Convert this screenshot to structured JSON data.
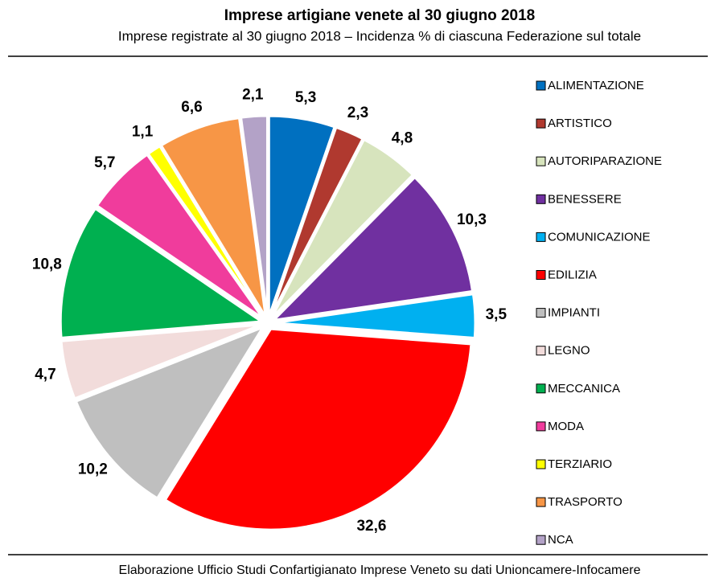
{
  "chart_data": {
    "type": "pie",
    "title": "Imprese artigiane venete al 30 giugno 2018",
    "subtitle": "Imprese registrate al 30 giugno 2018 – Incidenza % di ciascuna Federazione sul totale",
    "source": "Elaborazione Ufficio Studi Confartigianato Imprese Veneto su dati Unioncamere-Infocamere",
    "categories": [
      "ALIMENTAZIONE",
      "ARTISTICO",
      "AUTORIPARAZIONE",
      "BENESSERE",
      "COMUNICAZIONE",
      "EDILIZIA",
      "IMPIANTI",
      "LEGNO",
      "MECCANICA",
      "MODA",
      "TERZIARIO",
      "TRASPORTO",
      "NCA"
    ],
    "values": [
      5.3,
      2.3,
      4.8,
      10.3,
      3.5,
      32.6,
      10.2,
      4.7,
      10.8,
      5.7,
      1.1,
      6.6,
      2.1
    ],
    "value_labels": [
      "5,3",
      "2,3",
      "4,8",
      "10,3",
      "3,5",
      "32,6",
      "10,2",
      "4,7",
      "10,8",
      "5,7",
      "1,1",
      "6,6",
      "2,1"
    ],
    "colors": [
      "#0070c0",
      "#b0392f",
      "#d7e4bd",
      "#7030a0",
      "#00b0f0",
      "#ff0000",
      "#bfbfbf",
      "#f2dcdb",
      "#00b050",
      "#f03c9c",
      "#ffff00",
      "#f79646",
      "#b3a2c7"
    ],
    "legend": "right"
  }
}
